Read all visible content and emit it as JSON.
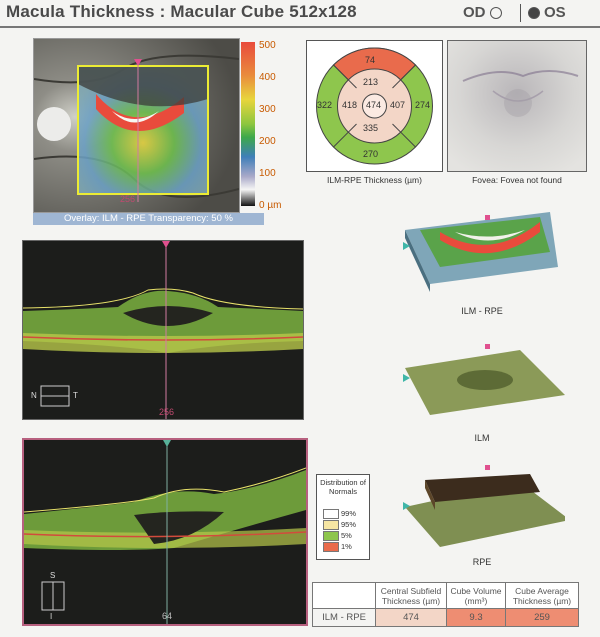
{
  "header": {
    "title": "Macula Thickness : Macular Cube 512x128",
    "od_label": "OD",
    "os_label": "OS",
    "selected_eye": "OS"
  },
  "fundus": {
    "scan_number": "256",
    "colorbar_labels": [
      "500",
      "400",
      "300",
      "200",
      "100",
      "0 µm"
    ],
    "overlay_text": "Overlay: ILM - RPE  Transparency: 50 %"
  },
  "etdrs": {
    "values": {
      "superior_outer": "74",
      "superior_inner": "213",
      "nasal_outer": "322",
      "nasal_inner": "418",
      "center": "474",
      "temporal_inner": "407",
      "temporal_outer": "274",
      "inferior_inner": "335",
      "inferior_outer": "270"
    },
    "caption": "ILM-RPE Thickness (µm)"
  },
  "fovea": {
    "caption": "Fovea: Fovea not found"
  },
  "oct1": {
    "scan_number": "256",
    "orient_left": "N",
    "orient_right": "T"
  },
  "oct2": {
    "scan_number": "64",
    "orient_top": "S",
    "orient_bottom": "I"
  },
  "renders": [
    {
      "label": "ILM - RPE"
    },
    {
      "label": "ILM"
    },
    {
      "label": "RPE"
    }
  ],
  "legend": {
    "title": "Distribution of Normals",
    "items": [
      {
        "label": "99%",
        "color": "#ffffff"
      },
      {
        "label": "95%",
        "color": "#f6e6a3"
      },
      {
        "label": "5%",
        "color": "#8ec64d"
      },
      {
        "label": "1%",
        "color": "#e96b4c"
      }
    ]
  },
  "summary": {
    "headers": [
      "Central Subfield Thickness (µm)",
      "Cube Volume (mm³)",
      "Cube Average Thickness (µm)"
    ],
    "row_label": "ILM - RPE",
    "values": [
      "474",
      "9.3",
      "259"
    ],
    "colors": {
      "central": "#f3d6c7",
      "volume": "#ee8d72",
      "average": "#ee8d72"
    }
  }
}
